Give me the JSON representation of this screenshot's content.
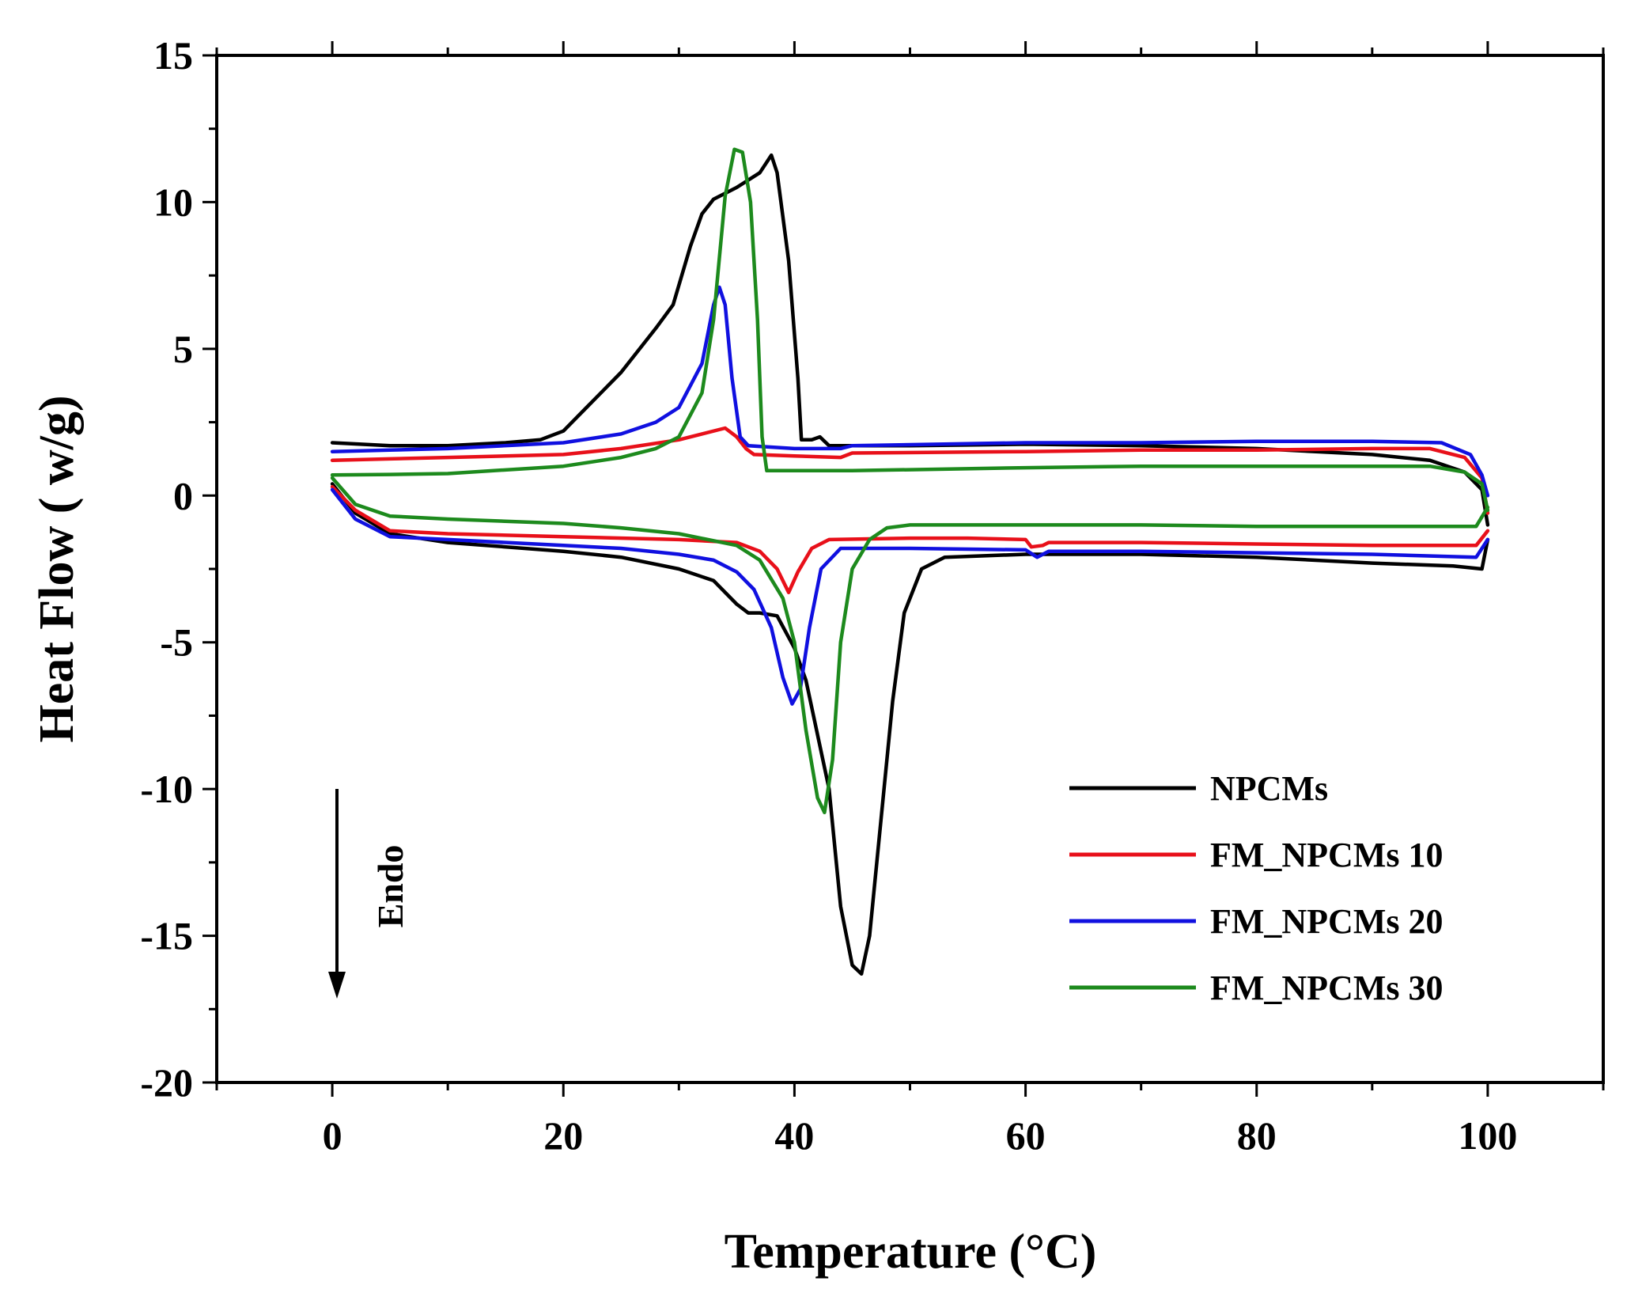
{
  "chart_data": {
    "type": "line",
    "title": "",
    "xlabel": "Temperature (°C)",
    "ylabel": "Heat Flow ( w/g)",
    "xlim": [
      -10,
      110
    ],
    "ylim": [
      -20,
      15
    ],
    "xticks": [
      0,
      20,
      40,
      60,
      80,
      100
    ],
    "yticks": [
      -20,
      -15,
      -10,
      -5,
      0,
      5,
      10,
      15
    ],
    "xtick_labels": [
      "0",
      "20",
      "40",
      "60",
      "80",
      "100"
    ],
    "ytick_labels": [
      "-20",
      "-15",
      "-10",
      "-5",
      "0",
      "5",
      "10",
      "15"
    ],
    "grid": false,
    "legend_position": "bottom-right",
    "annotation": {
      "text": "Endo",
      "arrow": "down"
    },
    "series": [
      {
        "name": "NPCMs",
        "color": "#000000",
        "cooling": [
          [
            0,
            1.8
          ],
          [
            5,
            1.7
          ],
          [
            10,
            1.7
          ],
          [
            15,
            1.8
          ],
          [
            18,
            1.9
          ],
          [
            20,
            2.2
          ],
          [
            22,
            3.0
          ],
          [
            25,
            4.2
          ],
          [
            28,
            5.7
          ],
          [
            29.5,
            6.5
          ],
          [
            31,
            8.5
          ],
          [
            32,
            9.6
          ],
          [
            33,
            10.1
          ],
          [
            35,
            10.5
          ],
          [
            37,
            11.0
          ],
          [
            38,
            11.6
          ],
          [
            38.5,
            11.0
          ],
          [
            39.5,
            8.0
          ],
          [
            40.3,
            4.0
          ],
          [
            40.6,
            1.9
          ],
          [
            41.5,
            1.9
          ],
          [
            42.2,
            2.0
          ],
          [
            43,
            1.7
          ],
          [
            50,
            1.7
          ],
          [
            60,
            1.75
          ],
          [
            70,
            1.7
          ],
          [
            80,
            1.6
          ],
          [
            90,
            1.4
          ],
          [
            95,
            1.2
          ],
          [
            98,
            0.8
          ],
          [
            99.5,
            0.2
          ],
          [
            100,
            -1.0
          ]
        ],
        "heating": [
          [
            0,
            0.4
          ],
          [
            2,
            -0.6
          ],
          [
            5,
            -1.3
          ],
          [
            10,
            -1.6
          ],
          [
            20,
            -1.9
          ],
          [
            25,
            -2.1
          ],
          [
            30,
            -2.5
          ],
          [
            33,
            -2.9
          ],
          [
            35,
            -3.7
          ],
          [
            36,
            -4.0
          ],
          [
            37,
            -4.0
          ],
          [
            38.5,
            -4.1
          ],
          [
            40,
            -5.2
          ],
          [
            41,
            -6.3
          ],
          [
            43,
            -10.0
          ],
          [
            44,
            -14.0
          ],
          [
            45,
            -16.0
          ],
          [
            45.8,
            -16.3
          ],
          [
            46.5,
            -15.0
          ],
          [
            47.5,
            -11.0
          ],
          [
            48.5,
            -7.0
          ],
          [
            49.5,
            -4.0
          ],
          [
            51,
            -2.5
          ],
          [
            53,
            -2.1
          ],
          [
            60,
            -2.0
          ],
          [
            70,
            -2.0
          ],
          [
            80,
            -2.1
          ],
          [
            90,
            -2.3
          ],
          [
            97,
            -2.4
          ],
          [
            99.5,
            -2.5
          ],
          [
            100,
            -1.5
          ]
        ]
      },
      {
        "name": "FM_NPCMs 10",
        "color": "#e8101a",
        "cooling": [
          [
            0,
            1.2
          ],
          [
            5,
            1.25
          ],
          [
            10,
            1.3
          ],
          [
            20,
            1.4
          ],
          [
            25,
            1.6
          ],
          [
            30,
            1.9
          ],
          [
            32,
            2.1
          ],
          [
            34,
            2.3
          ],
          [
            35,
            2.0
          ],
          [
            35.8,
            1.6
          ],
          [
            36.5,
            1.4
          ],
          [
            40,
            1.35
          ],
          [
            44,
            1.3
          ],
          [
            45,
            1.45
          ],
          [
            60,
            1.5
          ],
          [
            70,
            1.55
          ],
          [
            80,
            1.55
          ],
          [
            90,
            1.6
          ],
          [
            95,
            1.6
          ],
          [
            98,
            1.3
          ],
          [
            99.5,
            0.6
          ],
          [
            100,
            -0.6
          ]
        ],
        "heating": [
          [
            0,
            0.3
          ],
          [
            2,
            -0.5
          ],
          [
            5,
            -1.2
          ],
          [
            10,
            -1.3
          ],
          [
            20,
            -1.4
          ],
          [
            30,
            -1.5
          ],
          [
            35,
            -1.6
          ],
          [
            37,
            -1.9
          ],
          [
            38.5,
            -2.5
          ],
          [
            39.5,
            -3.3
          ],
          [
            40.3,
            -2.6
          ],
          [
            41.5,
            -1.8
          ],
          [
            43,
            -1.5
          ],
          [
            50,
            -1.45
          ],
          [
            55,
            -1.45
          ],
          [
            60,
            -1.5
          ],
          [
            60.5,
            -1.75
          ],
          [
            61.5,
            -1.7
          ],
          [
            62,
            -1.6
          ],
          [
            70,
            -1.6
          ],
          [
            80,
            -1.65
          ],
          [
            90,
            -1.7
          ],
          [
            99,
            -1.7
          ],
          [
            100,
            -1.2
          ]
        ]
      },
      {
        "name": "FM_NPCMs 20",
        "color": "#1010e0",
        "cooling": [
          [
            0,
            1.5
          ],
          [
            5,
            1.55
          ],
          [
            10,
            1.6
          ],
          [
            20,
            1.8
          ],
          [
            25,
            2.1
          ],
          [
            28,
            2.5
          ],
          [
            30,
            3.0
          ],
          [
            32,
            4.5
          ],
          [
            33,
            6.5
          ],
          [
            33.5,
            7.1
          ],
          [
            34,
            6.5
          ],
          [
            34.6,
            4.0
          ],
          [
            35.3,
            2.0
          ],
          [
            36,
            1.7
          ],
          [
            40,
            1.6
          ],
          [
            44,
            1.6
          ],
          [
            45,
            1.7
          ],
          [
            60,
            1.8
          ],
          [
            70,
            1.8
          ],
          [
            80,
            1.85
          ],
          [
            90,
            1.85
          ],
          [
            96,
            1.8
          ],
          [
            98.5,
            1.4
          ],
          [
            99.5,
            0.7
          ],
          [
            100,
            0.0
          ]
        ],
        "heating": [
          [
            0,
            0.2
          ],
          [
            2,
            -0.8
          ],
          [
            5,
            -1.4
          ],
          [
            10,
            -1.5
          ],
          [
            20,
            -1.7
          ],
          [
            25,
            -1.8
          ],
          [
            30,
            -2.0
          ],
          [
            33,
            -2.2
          ],
          [
            35,
            -2.6
          ],
          [
            36.5,
            -3.2
          ],
          [
            38,
            -4.5
          ],
          [
            39,
            -6.2
          ],
          [
            39.8,
            -7.1
          ],
          [
            40.5,
            -6.6
          ],
          [
            41.3,
            -4.5
          ],
          [
            42.3,
            -2.5
          ],
          [
            44,
            -1.8
          ],
          [
            50,
            -1.8
          ],
          [
            60,
            -1.85
          ],
          [
            61,
            -2.1
          ],
          [
            62,
            -1.9
          ],
          [
            70,
            -1.9
          ],
          [
            80,
            -1.95
          ],
          [
            90,
            -2.0
          ],
          [
            99,
            -2.1
          ],
          [
            100,
            -1.5
          ]
        ]
      },
      {
        "name": "FM_NPCMs 30",
        "color": "#1d8a1d",
        "cooling": [
          [
            0,
            0.7
          ],
          [
            5,
            0.72
          ],
          [
            10,
            0.75
          ],
          [
            20,
            1.0
          ],
          [
            25,
            1.3
          ],
          [
            28,
            1.6
          ],
          [
            30,
            2.0
          ],
          [
            32,
            3.5
          ],
          [
            33,
            6.0
          ],
          [
            34,
            10.2
          ],
          [
            34.8,
            11.8
          ],
          [
            35.5,
            11.7
          ],
          [
            36.2,
            10.0
          ],
          [
            36.8,
            6.0
          ],
          [
            37.2,
            2.0
          ],
          [
            37.6,
            0.85
          ],
          [
            45,
            0.85
          ],
          [
            60,
            0.95
          ],
          [
            70,
            1.0
          ],
          [
            80,
            1.0
          ],
          [
            90,
            1.0
          ],
          [
            95,
            1.0
          ],
          [
            98,
            0.8
          ],
          [
            99.5,
            0.4
          ],
          [
            100,
            -0.5
          ]
        ],
        "heating": [
          [
            0,
            0.6
          ],
          [
            2,
            -0.3
          ],
          [
            5,
            -0.7
          ],
          [
            10,
            -0.8
          ],
          [
            20,
            -0.95
          ],
          [
            25,
            -1.1
          ],
          [
            30,
            -1.3
          ],
          [
            35,
            -1.7
          ],
          [
            37,
            -2.2
          ],
          [
            39,
            -3.5
          ],
          [
            40,
            -5.0
          ],
          [
            41,
            -8.0
          ],
          [
            42,
            -10.3
          ],
          [
            42.6,
            -10.8
          ],
          [
            43.3,
            -9.0
          ],
          [
            44,
            -5.0
          ],
          [
            45,
            -2.5
          ],
          [
            46.5,
            -1.5
          ],
          [
            48,
            -1.1
          ],
          [
            50,
            -1.0
          ],
          [
            60,
            -1.0
          ],
          [
            70,
            -1.0
          ],
          [
            80,
            -1.05
          ],
          [
            90,
            -1.05
          ],
          [
            99,
            -1.05
          ],
          [
            100,
            -0.4
          ]
        ]
      }
    ]
  }
}
